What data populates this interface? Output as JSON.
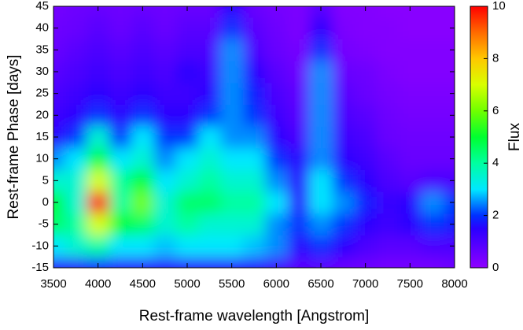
{
  "chart_data": {
    "type": "heatmap",
    "xlabel": "Rest-frame wavelength [Angstrom]",
    "ylabel": "Rest-frame Phase [days]",
    "colorbar_label": "Flux",
    "x": [
      3500,
      3750,
      4000,
      4250,
      4500,
      4750,
      5000,
      5250,
      5500,
      5750,
      6000,
      6250,
      6500,
      6750,
      7000,
      7250,
      7500,
      7750,
      8000
    ],
    "y": [
      -15,
      -10,
      -5,
      0,
      5,
      10,
      15,
      20,
      25,
      30,
      35,
      40,
      45
    ],
    "z": [
      [
        1.5,
        1.5,
        1.8,
        1.5,
        1.5,
        1.5,
        1.5,
        1.5,
        1.5,
        1.5,
        1.2,
        0.8,
        0.8,
        0.6,
        0.5,
        0.4,
        0.4,
        0.4,
        0.5
      ],
      [
        3,
        3.5,
        4,
        3,
        3,
        2.8,
        3,
        3,
        3,
        2.8,
        2.5,
        1.5,
        2,
        1.5,
        1,
        0.8,
        0.8,
        1,
        1
      ],
      [
        4.5,
        4,
        7,
        5,
        4.5,
        3.5,
        4,
        3.5,
        3.5,
        3.5,
        2.5,
        2,
        2.5,
        2,
        1.5,
        1.2,
        1.5,
        2,
        1.8
      ],
      [
        5,
        3.5,
        10,
        4,
        6,
        3.5,
        4.5,
        4.5,
        4,
        4,
        3,
        1.5,
        3,
        2.5,
        1.8,
        1.3,
        1.5,
        2.5,
        2
      ],
      [
        3.5,
        3.5,
        7,
        4,
        5,
        3,
        3.5,
        4,
        3.5,
        3.5,
        2.5,
        1.5,
        3,
        2,
        1.5,
        1,
        0.8,
        1,
        1
      ],
      [
        2.5,
        3,
        5,
        3,
        3.5,
        2.5,
        3,
        3.5,
        3,
        3,
        2,
        1.5,
        2.5,
        1.5,
        1.2,
        0.8,
        0.6,
        0.6,
        0.6
      ],
      [
        1.5,
        2,
        3.5,
        2,
        3,
        2,
        2,
        3,
        2.5,
        2.5,
        1.5,
        1,
        2.5,
        1.2,
        1,
        0.6,
        0.5,
        0.5,
        0.5
      ],
      [
        1.2,
        1.5,
        2,
        1.5,
        2,
        1.5,
        1.5,
        2,
        2.5,
        2,
        1.2,
        0.8,
        2.5,
        1,
        0.8,
        0.5,
        0.4,
        0.4,
        0.4
      ],
      [
        1,
        1.2,
        1.5,
        1.2,
        1.5,
        1.2,
        1.2,
        1.5,
        2.5,
        1.8,
        1,
        0.7,
        2.5,
        0.8,
        0.6,
        0.4,
        0.3,
        0.3,
        0.3
      ],
      [
        0.8,
        1,
        1.2,
        1,
        1.2,
        1,
        1.5,
        1.2,
        2.5,
        1.5,
        0.8,
        0.5,
        2.5,
        0.6,
        0.5,
        0.3,
        0.2,
        0.2,
        0.2
      ],
      [
        0.6,
        0.8,
        1,
        0.8,
        1,
        0.8,
        1,
        1,
        2.5,
        1,
        0.6,
        0.4,
        2,
        0.4,
        0.3,
        0.2,
        0.2,
        0.2,
        0.2
      ],
      [
        0.5,
        0.6,
        0.8,
        0.6,
        0.8,
        0.6,
        0.8,
        0.8,
        2,
        0.8,
        0.5,
        0.3,
        1.5,
        0.3,
        0.2,
        0.2,
        0.1,
        0.1,
        0.1
      ],
      [
        0.4,
        0.5,
        0.6,
        0.5,
        0.6,
        0.5,
        0.6,
        0.6,
        1.5,
        0.6,
        0.4,
        0.3,
        0.8,
        0.2,
        0.2,
        0.1,
        0.1,
        0.1,
        0.1
      ]
    ],
    "xlim": [
      3500,
      8000
    ],
    "xticks": [
      3500,
      4000,
      4500,
      5000,
      5500,
      6000,
      6500,
      7000,
      7500,
      8000
    ],
    "ylim": [
      -15,
      45
    ],
    "yticks": [
      -15,
      -10,
      -5,
      0,
      5,
      10,
      15,
      20,
      25,
      30,
      35,
      40,
      45
    ],
    "zlim": [
      0,
      10
    ],
    "zticks": [
      0,
      2,
      4,
      6,
      8,
      10
    ],
    "colorscale": [
      [
        0,
        "#8f00ff"
      ],
      [
        1.5,
        "#2a00ff"
      ],
      [
        2,
        "#0030ff"
      ],
      [
        3,
        "#00e8ff"
      ],
      [
        4,
        "#00ffa0"
      ],
      [
        5,
        "#00ff30"
      ],
      [
        6,
        "#70ff00"
      ],
      [
        7,
        "#d8ff00"
      ],
      [
        8,
        "#ffc800"
      ],
      [
        9,
        "#ff6a00"
      ],
      [
        10,
        "#ff0000"
      ]
    ]
  }
}
